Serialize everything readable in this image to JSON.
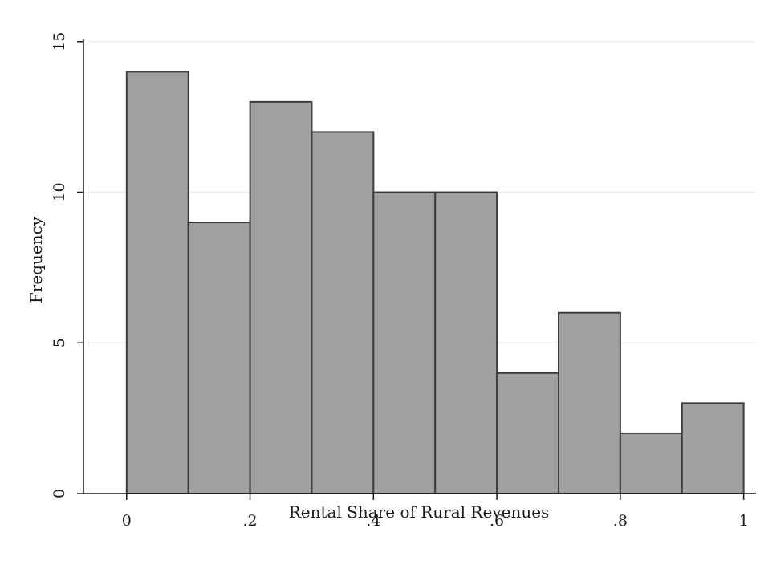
{
  "chart_data": {
    "type": "bar",
    "subtype": "histogram",
    "title": "",
    "xlabel": "Rental Share of Rural Revenues",
    "ylabel": "Frequency",
    "bins": [
      {
        "start": 0.0,
        "end": 0.1,
        "value": 14
      },
      {
        "start": 0.1,
        "end": 0.2,
        "value": 9
      },
      {
        "start": 0.2,
        "end": 0.3,
        "value": 13
      },
      {
        "start": 0.3,
        "end": 0.4,
        "value": 12
      },
      {
        "start": 0.4,
        "end": 0.5,
        "value": 10
      },
      {
        "start": 0.5,
        "end": 0.6,
        "value": 10
      },
      {
        "start": 0.6,
        "end": 0.7,
        "value": 4
      },
      {
        "start": 0.7,
        "end": 0.8,
        "value": 6
      },
      {
        "start": 0.8,
        "end": 0.9,
        "value": 2
      },
      {
        "start": 0.9,
        "end": 1.0,
        "value": 3
      }
    ],
    "xlim": [
      -0.07,
      1.02
    ],
    "ylim": [
      0,
      15.5
    ],
    "x_ticks": [
      {
        "value": 0,
        "label": "0"
      },
      {
        "value": 0.2,
        "label": ".2"
      },
      {
        "value": 0.4,
        "label": ".4"
      },
      {
        "value": 0.6,
        "label": ".6"
      },
      {
        "value": 0.8,
        "label": ".8"
      },
      {
        "value": 1,
        "label": "1"
      }
    ],
    "y_ticks": [
      {
        "value": 0,
        "label": "0"
      },
      {
        "value": 5,
        "label": "5"
      },
      {
        "value": 10,
        "label": "10"
      },
      {
        "value": 15,
        "label": "15"
      }
    ],
    "grid": "horizontal",
    "legend": "none",
    "colors": {
      "bar_fill": "#a0a0a0",
      "bar_stroke": "#3c3c3c",
      "grid": "#e6eef0",
      "axis": "#1a1a1a"
    }
  }
}
